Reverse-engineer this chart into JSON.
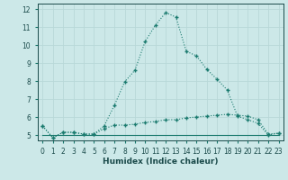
{
  "xlabel": "Humidex (Indice chaleur)",
  "ylabel": "",
  "bg_color": "#cce8e8",
  "line_color": "#1a7a6e",
  "grid_color": "#b8d8d8",
  "xlim": [
    -0.5,
    23.5
  ],
  "ylim": [
    4.7,
    12.3
  ],
  "xticks": [
    0,
    1,
    2,
    3,
    4,
    5,
    6,
    7,
    8,
    9,
    10,
    11,
    12,
    13,
    14,
    15,
    16,
    17,
    18,
    19,
    20,
    21,
    22,
    23
  ],
  "yticks": [
    5,
    6,
    7,
    8,
    9,
    10,
    11,
    12
  ],
  "curve1_x": [
    0,
    1,
    2,
    3,
    4,
    5,
    6,
    7,
    8,
    9,
    10,
    11,
    12,
    13,
    14,
    15,
    16,
    17,
    18,
    19,
    20,
    21,
    22,
    23
  ],
  "curve1_y": [
    5.5,
    4.85,
    5.15,
    5.15,
    5.05,
    5.05,
    5.5,
    6.65,
    7.95,
    8.6,
    10.2,
    11.1,
    11.8,
    11.55,
    9.65,
    9.4,
    8.65,
    8.1,
    7.5,
    6.05,
    5.85,
    5.65,
    5.0,
    5.1
  ],
  "curve2_x": [
    0,
    1,
    2,
    3,
    4,
    5,
    6,
    7,
    8,
    9,
    10,
    11,
    12,
    13,
    14,
    15,
    16,
    17,
    18,
    19,
    20,
    21,
    22,
    23
  ],
  "curve2_y": [
    5.5,
    4.85,
    5.15,
    5.15,
    5.05,
    5.05,
    5.35,
    5.55,
    5.55,
    5.6,
    5.7,
    5.75,
    5.85,
    5.85,
    5.95,
    6.0,
    6.05,
    6.1,
    6.15,
    6.1,
    6.05,
    5.85,
    5.05,
    5.1
  ],
  "curve3_x": [
    0,
    1,
    2,
    3,
    4,
    5,
    6,
    7,
    8,
    9,
    10,
    11,
    12,
    13,
    14,
    15,
    16,
    17,
    18,
    19,
    20,
    21,
    22,
    23
  ],
  "curve3_y": [
    5.0,
    5.0,
    5.0,
    5.0,
    5.0,
    5.0,
    5.0,
    5.0,
    5.0,
    5.0,
    5.0,
    5.0,
    5.0,
    5.0,
    5.0,
    5.0,
    5.0,
    5.0,
    5.0,
    5.0,
    5.0,
    5.0,
    5.0,
    5.0
  ],
  "marker": "+",
  "markersize": 3,
  "linewidth": 0.8,
  "label_fontsize": 6.5,
  "tick_fontsize": 5.5
}
